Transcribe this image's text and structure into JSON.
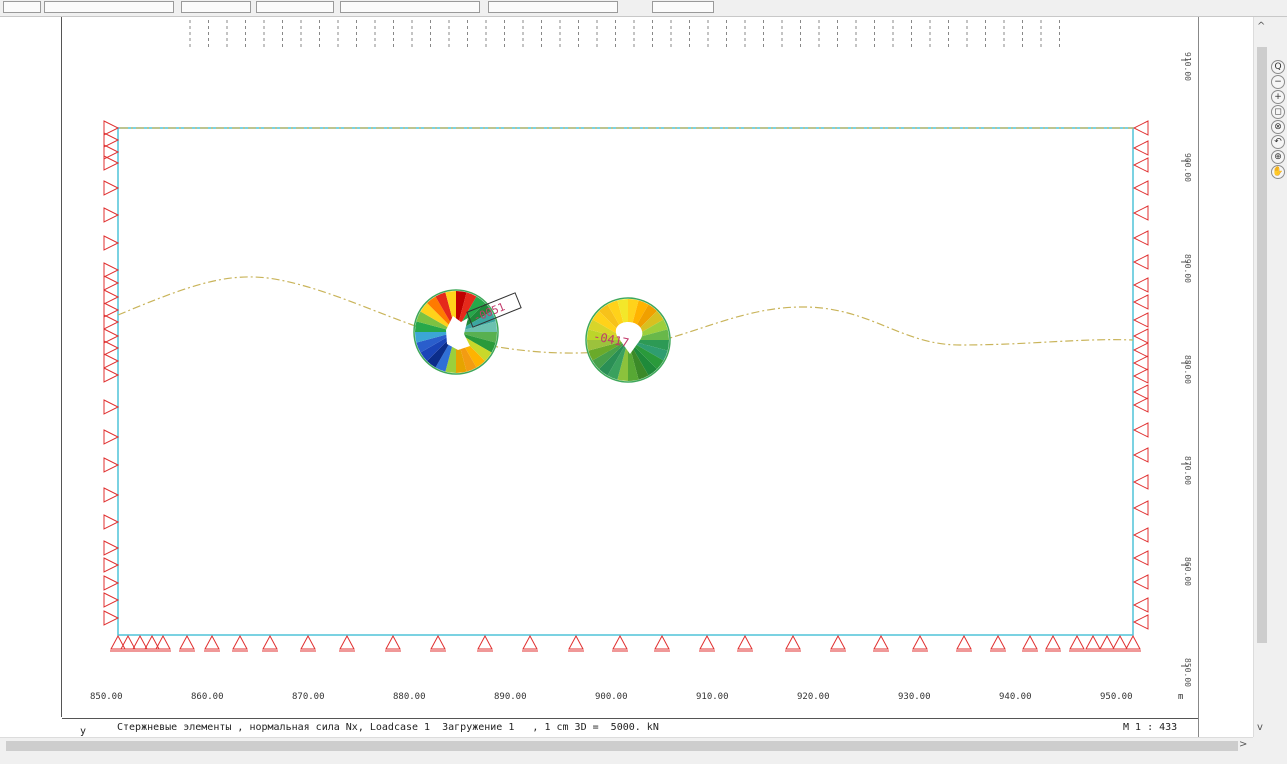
{
  "view": {
    "x_axis_labels": [
      "850.00",
      "860.00",
      "870.00",
      "880.00",
      "890.00",
      "900.00",
      "910.00",
      "920.00",
      "930.00",
      "940.00",
      "950.00"
    ],
    "x_axis_unit": "m",
    "y_axis_labels": [
      "910.00",
      "900.00",
      "890.00",
      "880.00",
      "870.00",
      "860.00",
      "850.00"
    ],
    "status_axis": "y",
    "status_text": "Стержневые элементы , нормальная сила Nx, Loadcase 1  Загружение 1   , 1 cm 3D =  5000. kN",
    "scale": "M 1 : 433",
    "element_labels": [
      "-0051",
      "-0417"
    ]
  },
  "right_tools": [
    "zoom-icon",
    "zoom-out-icon",
    "zoom-in-icon",
    "zoom-window-icon",
    "zoom-all-icon",
    "zoom-previous-icon",
    "center-view-icon",
    "pan-icon"
  ],
  "colors": {
    "boundary": "#4fc3d9",
    "support": "#e03030",
    "alignment": "#c9b45a",
    "frame": "#555555"
  }
}
